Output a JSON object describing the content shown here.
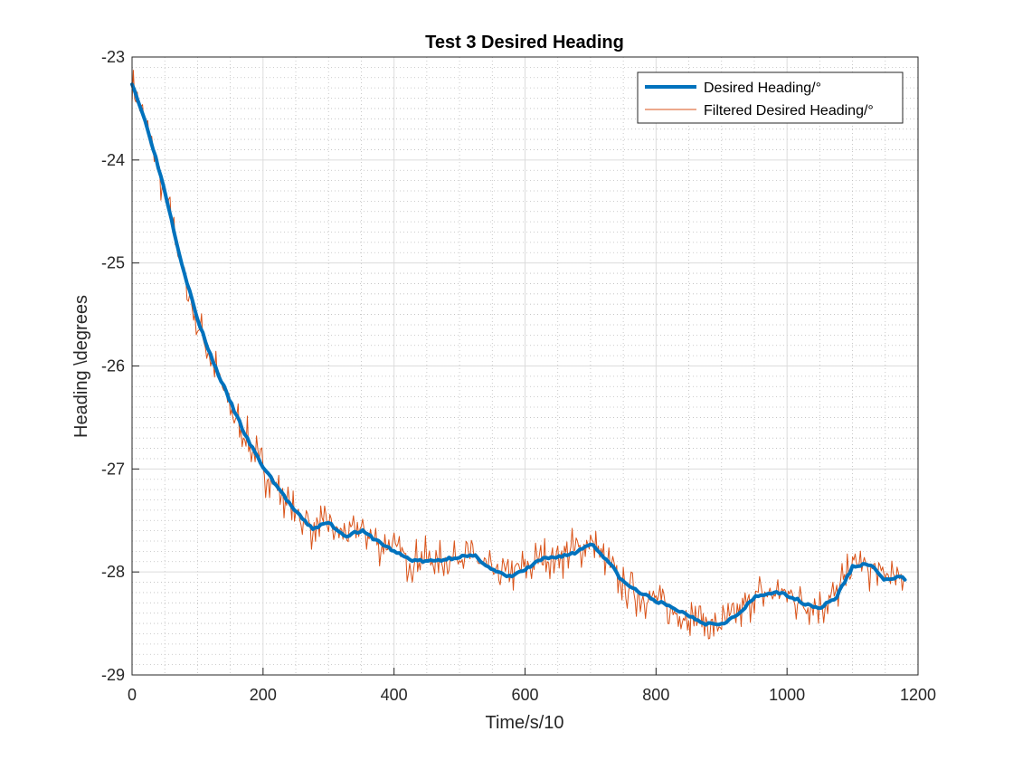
{
  "chart_data": {
    "type": "line",
    "title": "Test 3 Desired Heading",
    "xlabel": "Time/s/10",
    "ylabel": "Heading \\degrees",
    "xlim": [
      0,
      1200
    ],
    "ylim": [
      -29,
      -23
    ],
    "xticks": [
      0,
      200,
      400,
      600,
      800,
      1000,
      1200
    ],
    "yticks": [
      -29,
      -28,
      -27,
      -26,
      -25,
      -24,
      -23
    ],
    "grid": "major-and-minor",
    "legend_position": "top-right",
    "colors": {
      "series1": "#0072BD",
      "series2": "#D95319"
    },
    "series": [
      {
        "name": "Desired Heading/°",
        "line": "thick",
        "x": [
          0,
          25,
          50,
          75,
          100,
          125,
          150,
          175,
          200,
          225,
          250,
          275,
          300,
          325,
          350,
          375,
          400,
          425,
          450,
          475,
          500,
          525,
          550,
          575,
          600,
          625,
          650,
          675,
          700,
          725,
          750,
          775,
          800,
          825,
          850,
          875,
          900,
          925,
          950,
          975,
          1000,
          1025,
          1050,
          1075,
          1100,
          1125,
          1150,
          1175,
          1180
        ],
        "values": [
          -23.25,
          -23.72,
          -24.3,
          -24.98,
          -25.55,
          -25.98,
          -26.35,
          -26.7,
          -26.98,
          -27.2,
          -27.42,
          -27.58,
          -27.52,
          -27.65,
          -27.6,
          -27.7,
          -27.8,
          -27.88,
          -27.9,
          -27.88,
          -27.85,
          -27.85,
          -27.98,
          -28.05,
          -27.98,
          -27.88,
          -27.85,
          -27.82,
          -27.72,
          -27.88,
          -28.1,
          -28.2,
          -28.28,
          -28.35,
          -28.42,
          -28.5,
          -28.5,
          -28.42,
          -28.25,
          -28.2,
          -28.22,
          -28.3,
          -28.35,
          -28.25,
          -27.95,
          -27.92,
          -28.08,
          -28.05,
          -28.07
        ]
      },
      {
        "name": "Filtered Desired Heading/°",
        "line": "thin-noisy",
        "x": [
          0,
          25,
          50,
          75,
          100,
          125,
          150,
          175,
          200,
          225,
          250,
          275,
          300,
          325,
          350,
          375,
          400,
          425,
          450,
          475,
          500,
          525,
          550,
          575,
          600,
          625,
          650,
          675,
          700,
          725,
          750,
          775,
          800,
          825,
          850,
          875,
          900,
          925,
          950,
          975,
          1000,
          1025,
          1050,
          1075,
          1100,
          1125,
          1150,
          1175,
          1180
        ],
        "values": [
          -23.3,
          -23.75,
          -24.35,
          -25.0,
          -25.6,
          -26.0,
          -26.4,
          -26.72,
          -27.0,
          -27.22,
          -27.45,
          -27.55,
          -27.55,
          -27.62,
          -27.58,
          -27.72,
          -27.78,
          -27.9,
          -27.88,
          -27.9,
          -27.83,
          -27.88,
          -28.0,
          -28.02,
          -27.95,
          -27.9,
          -27.83,
          -27.8,
          -27.7,
          -27.9,
          -28.12,
          -28.22,
          -28.26,
          -28.38,
          -28.45,
          -28.48,
          -28.52,
          -28.4,
          -28.22,
          -28.22,
          -28.2,
          -28.32,
          -28.33,
          -28.22,
          -27.92,
          -27.95,
          -28.05,
          -28.08,
          -28.05
        ],
        "noise_amplitude": 0.25
      }
    ]
  }
}
